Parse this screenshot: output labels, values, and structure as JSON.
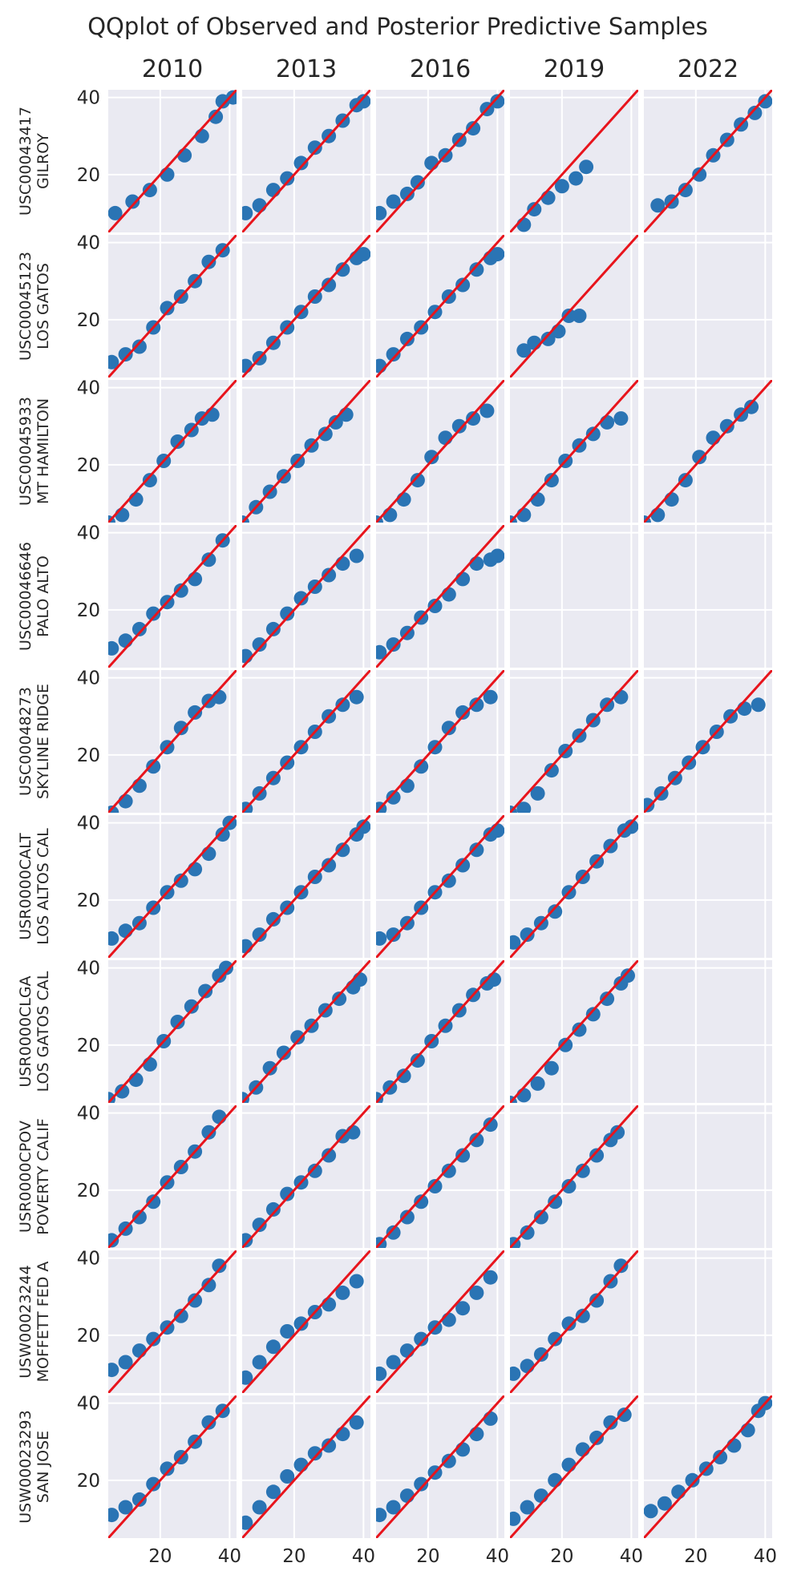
{
  "chart_data": {
    "type": "scatter",
    "title": "QQplot of Observed and Posterior Predictive Samples",
    "columns": [
      "2010",
      "2013",
      "2016",
      "2019",
      "2022"
    ],
    "rows": [
      [
        "USC00043417",
        "GILROY"
      ],
      [
        "USC00045123",
        "LOS GATOS"
      ],
      [
        "USC00045933",
        "MT HAMILTON"
      ],
      [
        "USC00046646",
        "PALO ALTO"
      ],
      [
        "USC00048273",
        "SKYLINE RIDGE"
      ],
      [
        "USR0000CALT",
        "LOS ALTOS CAL"
      ],
      [
        "USR0000CLGA",
        "LOS GATOS CAL"
      ],
      [
        "USR0000CPOV",
        "POVERTY CALIF"
      ],
      [
        "USW00023244",
        "MOFFETT FED A"
      ],
      [
        "USW00023293",
        "SAN JOSE"
      ]
    ],
    "xlim": [
      5,
      42
    ],
    "ylim": [
      5,
      42
    ],
    "xticks": [
      20,
      40
    ],
    "yticks": [
      20,
      40
    ],
    "grid": true,
    "reference_line": {
      "slope": 1,
      "intercept": 0,
      "color": "#e8141c"
    },
    "point_color": "#2a74b4",
    "background": "#eaeaf2",
    "panels": [
      [
        {
          "x": [
            7,
            12,
            17,
            22,
            27,
            32,
            36,
            38,
            41
          ],
          "y": [
            10,
            13,
            16,
            20,
            25,
            30,
            35,
            39,
            40
          ]
        },
        {
          "x": [
            6,
            10,
            14,
            18,
            22,
            26,
            30,
            34,
            38,
            40
          ],
          "y": [
            10,
            12,
            16,
            19,
            23,
            27,
            30,
            34,
            38,
            39
          ]
        },
        {
          "x": [
            6,
            10,
            14,
            17,
            21,
            25,
            29,
            33,
            37,
            40
          ],
          "y": [
            10,
            13,
            15,
            18,
            23,
            25,
            29,
            32,
            37,
            39
          ]
        },
        {
          "x": [
            9,
            12,
            16,
            20,
            24,
            27
          ],
          "y": [
            7,
            11,
            14,
            17,
            19,
            22
          ]
        },
        {
          "x": [
            9,
            13,
            17,
            21,
            25,
            29,
            33,
            37,
            40
          ],
          "y": [
            12,
            13,
            16,
            20,
            25,
            29,
            33,
            36,
            39
          ]
        }
      ],
      [
        {
          "x": [
            6,
            10,
            14,
            18,
            22,
            26,
            30,
            34,
            38
          ],
          "y": [
            9,
            11,
            13,
            18,
            23,
            26,
            30,
            35,
            38
          ]
        },
        {
          "x": [
            6,
            10,
            14,
            18,
            22,
            26,
            30,
            34,
            38,
            40
          ],
          "y": [
            8,
            10,
            14,
            18,
            22,
            26,
            29,
            33,
            36,
            37
          ]
        },
        {
          "x": [
            6,
            10,
            14,
            18,
            22,
            26,
            30,
            34,
            38,
            40
          ],
          "y": [
            8,
            11,
            15,
            18,
            22,
            26,
            29,
            33,
            36,
            37
          ]
        },
        {
          "x": [
            9,
            12,
            16,
            19,
            22,
            25
          ],
          "y": [
            12,
            14,
            15,
            17,
            21,
            21
          ]
        },
        null
      ],
      [
        {
          "x": [
            5,
            9,
            13,
            17,
            21,
            25,
            29,
            32,
            35
          ],
          "y": [
            5,
            7,
            11,
            16,
            21,
            26,
            29,
            32,
            33
          ]
        },
        {
          "x": [
            5,
            9,
            13,
            17,
            21,
            25,
            29,
            32,
            35
          ],
          "y": [
            5,
            9,
            13,
            17,
            21,
            25,
            28,
            31,
            33
          ]
        },
        {
          "x": [
            5,
            9,
            13,
            17,
            21,
            25,
            29,
            33,
            37
          ],
          "y": [
            5,
            7,
            11,
            16,
            22,
            27,
            30,
            32,
            34
          ]
        },
        {
          "x": [
            5,
            9,
            13,
            17,
            21,
            25,
            29,
            33,
            37
          ],
          "y": [
            5,
            7,
            11,
            16,
            21,
            25,
            28,
            31,
            32
          ]
        },
        {
          "x": [
            5,
            9,
            13,
            17,
            21,
            25,
            29,
            33,
            36
          ],
          "y": [
            5,
            7,
            11,
            16,
            22,
            27,
            30,
            33,
            35
          ]
        }
      ],
      [
        {
          "x": [
            6,
            10,
            14,
            18,
            22,
            26,
            30,
            34,
            38
          ],
          "y": [
            10,
            12,
            15,
            19,
            22,
            25,
            28,
            33,
            38
          ]
        },
        {
          "x": [
            6,
            10,
            14,
            18,
            22,
            26,
            30,
            34,
            38
          ],
          "y": [
            8,
            11,
            15,
            19,
            23,
            26,
            29,
            32,
            34
          ]
        },
        {
          "x": [
            6,
            10,
            14,
            18,
            22,
            26,
            30,
            34,
            38,
            40
          ],
          "y": [
            9,
            11,
            14,
            18,
            21,
            24,
            28,
            32,
            33,
            34
          ]
        },
        null,
        null
      ],
      [
        {
          "x": [
            6,
            10,
            14,
            18,
            22,
            26,
            30,
            34,
            37
          ],
          "y": [
            5,
            8,
            12,
            17,
            22,
            27,
            31,
            34,
            35
          ]
        },
        {
          "x": [
            6,
            10,
            14,
            18,
            22,
            26,
            30,
            34,
            38
          ],
          "y": [
            6,
            10,
            14,
            18,
            22,
            26,
            30,
            33,
            35
          ]
        },
        {
          "x": [
            6,
            10,
            14,
            18,
            22,
            26,
            30,
            34,
            38
          ],
          "y": [
            6,
            9,
            12,
            17,
            22,
            27,
            31,
            33,
            35
          ]
        },
        {
          "x": [
            5,
            9,
            13,
            17,
            21,
            25,
            29,
            33,
            37
          ],
          "y": [
            5,
            6,
            10,
            16,
            21,
            25,
            29,
            33,
            35
          ]
        },
        {
          "x": [
            6,
            10,
            14,
            18,
            22,
            26,
            30,
            34,
            38
          ],
          "y": [
            7,
            10,
            14,
            18,
            22,
            26,
            30,
            32,
            33
          ]
        }
      ],
      [
        {
          "x": [
            6,
            10,
            14,
            18,
            22,
            26,
            30,
            34,
            38,
            40
          ],
          "y": [
            10,
            12,
            14,
            18,
            22,
            25,
            28,
            32,
            37,
            40
          ]
        },
        {
          "x": [
            6,
            10,
            14,
            18,
            22,
            26,
            30,
            34,
            38,
            40
          ],
          "y": [
            8,
            11,
            15,
            18,
            22,
            26,
            29,
            33,
            37,
            39
          ]
        },
        {
          "x": [
            6,
            10,
            14,
            18,
            22,
            26,
            30,
            34,
            38,
            40
          ],
          "y": [
            10,
            11,
            14,
            18,
            22,
            25,
            29,
            33,
            37,
            38
          ]
        },
        {
          "x": [
            6,
            10,
            14,
            18,
            22,
            26,
            30,
            34,
            38,
            40
          ],
          "y": [
            9,
            11,
            14,
            17,
            22,
            26,
            30,
            34,
            38,
            39
          ]
        },
        null
      ],
      [
        {
          "x": [
            5,
            9,
            13,
            17,
            21,
            25,
            29,
            33,
            37,
            39
          ],
          "y": [
            6,
            8,
            11,
            15,
            21,
            26,
            30,
            34,
            38,
            40
          ]
        },
        {
          "x": [
            5,
            9,
            13,
            17,
            21,
            25,
            29,
            33,
            37,
            39
          ],
          "y": [
            6,
            9,
            14,
            18,
            22,
            25,
            29,
            32,
            35,
            37
          ]
        },
        {
          "x": [
            5,
            9,
            13,
            17,
            21,
            25,
            29,
            33,
            37,
            39
          ],
          "y": [
            6,
            9,
            12,
            16,
            21,
            25,
            29,
            33,
            36,
            37
          ]
        },
        {
          "x": [
            5,
            9,
            13,
            17,
            21,
            25,
            29,
            33,
            37,
            39
          ],
          "y": [
            5,
            7,
            10,
            14,
            20,
            24,
            28,
            32,
            36,
            38
          ]
        },
        null
      ],
      [
        {
          "x": [
            6,
            10,
            14,
            18,
            22,
            26,
            30,
            34,
            37
          ],
          "y": [
            7,
            10,
            13,
            17,
            22,
            26,
            30,
            35,
            39
          ]
        },
        {
          "x": [
            6,
            10,
            14,
            18,
            22,
            26,
            30,
            34,
            37
          ],
          "y": [
            7,
            11,
            15,
            19,
            22,
            25,
            29,
            34,
            35
          ]
        },
        {
          "x": [
            6,
            10,
            14,
            18,
            22,
            26,
            30,
            34,
            38
          ],
          "y": [
            6,
            9,
            13,
            17,
            21,
            25,
            29,
            33,
            37
          ]
        },
        {
          "x": [
            6,
            10,
            14,
            18,
            22,
            26,
            30,
            34,
            36
          ],
          "y": [
            6,
            9,
            13,
            17,
            21,
            25,
            29,
            33,
            35
          ]
        },
        null
      ],
      [
        {
          "x": [
            6,
            10,
            14,
            18,
            22,
            26,
            30,
            34,
            37
          ],
          "y": [
            11,
            13,
            16,
            19,
            22,
            25,
            29,
            33,
            38
          ]
        },
        {
          "x": [
            6,
            10,
            14,
            18,
            22,
            26,
            30,
            34,
            38
          ],
          "y": [
            9,
            13,
            17,
            21,
            23,
            26,
            28,
            31,
            34
          ]
        },
        {
          "x": [
            6,
            10,
            14,
            18,
            22,
            26,
            30,
            34,
            38
          ],
          "y": [
            10,
            13,
            16,
            19,
            22,
            24,
            27,
            31,
            35
          ]
        },
        {
          "x": [
            6,
            10,
            14,
            18,
            22,
            26,
            30,
            34,
            37
          ],
          "y": [
            10,
            12,
            15,
            19,
            23,
            25,
            29,
            34,
            38
          ]
        },
        null
      ],
      [
        {
          "x": [
            6,
            10,
            14,
            18,
            22,
            26,
            30,
            34,
            38
          ],
          "y": [
            11,
            13,
            15,
            19,
            23,
            26,
            30,
            35,
            38
          ]
        },
        {
          "x": [
            6,
            10,
            14,
            18,
            22,
            26,
            30,
            34,
            38
          ],
          "y": [
            9,
            13,
            17,
            21,
            24,
            27,
            29,
            32,
            35
          ]
        },
        {
          "x": [
            6,
            10,
            14,
            18,
            22,
            26,
            30,
            34,
            38
          ],
          "y": [
            11,
            13,
            16,
            19,
            22,
            25,
            28,
            32,
            36
          ]
        },
        {
          "x": [
            6,
            10,
            14,
            18,
            22,
            26,
            30,
            34,
            38
          ],
          "y": [
            10,
            13,
            16,
            20,
            24,
            28,
            31,
            35,
            37
          ]
        },
        {
          "x": [
            7,
            11,
            15,
            19,
            23,
            27,
            31,
            35,
            38,
            40
          ],
          "y": [
            12,
            14,
            17,
            20,
            23,
            26,
            29,
            33,
            38,
            40
          ]
        }
      ]
    ]
  }
}
